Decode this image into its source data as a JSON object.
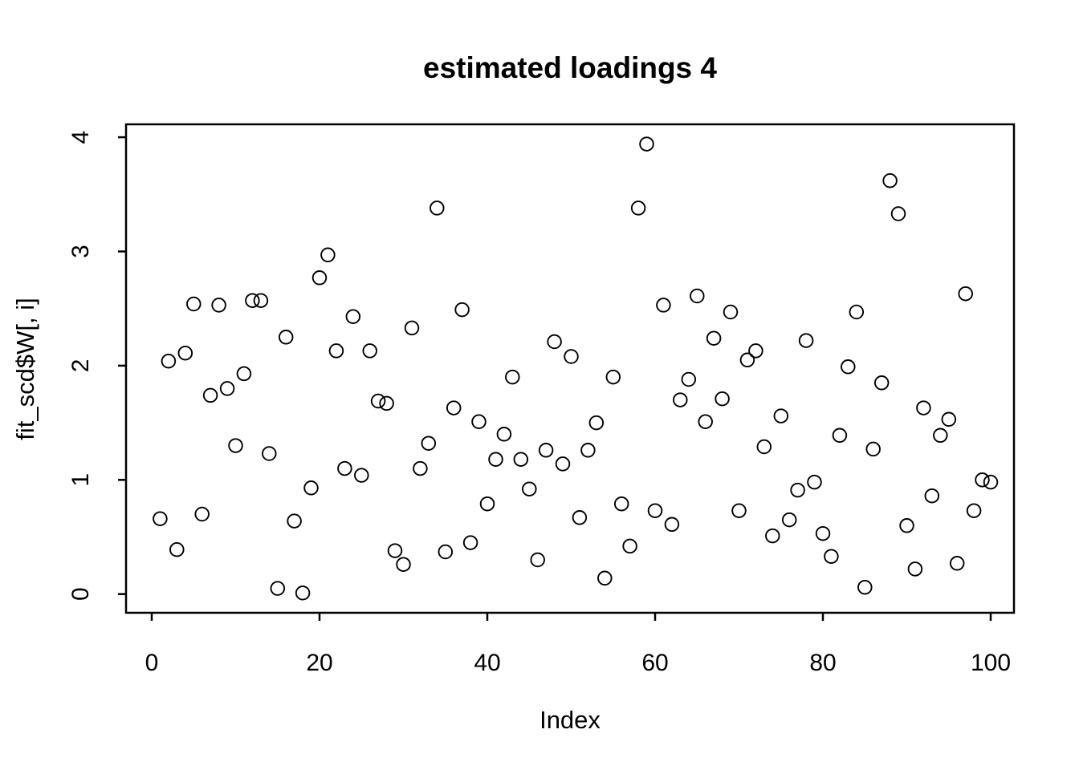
{
  "chart_data": {
    "type": "scatter",
    "title": "estimated loadings 4",
    "xlabel": "Index",
    "ylabel": "fit_scd$W[, i]",
    "x_ticks": [
      0,
      20,
      40,
      60,
      80,
      100
    ],
    "y_ticks": [
      0,
      1,
      2,
      3,
      4
    ],
    "xlim": [
      -3,
      103
    ],
    "ylim": [
      -0.16,
      4.11
    ],
    "grid": false,
    "legend": false,
    "marker": "open-circle",
    "marker_color": "#000000",
    "background_color": "#ffffff",
    "x": [
      1,
      2,
      3,
      4,
      5,
      6,
      7,
      8,
      9,
      10,
      11,
      12,
      13,
      14,
      15,
      16,
      17,
      18,
      19,
      20,
      21,
      22,
      23,
      24,
      25,
      26,
      27,
      28,
      29,
      30,
      31,
      32,
      33,
      34,
      35,
      36,
      37,
      38,
      39,
      40,
      41,
      42,
      43,
      44,
      45,
      46,
      47,
      48,
      49,
      50,
      51,
      52,
      53,
      54,
      55,
      56,
      57,
      58,
      59,
      60,
      61,
      62,
      63,
      64,
      65,
      66,
      67,
      68,
      69,
      70,
      71,
      72,
      73,
      74,
      75,
      76,
      77,
      78,
      79,
      80,
      81,
      82,
      83,
      84,
      85,
      86,
      87,
      88,
      89,
      90,
      91,
      92,
      93,
      94,
      95,
      96,
      97,
      98,
      99,
      100
    ],
    "y": [
      0.66,
      2.04,
      0.39,
      2.11,
      2.54,
      0.7,
      1.74,
      2.53,
      1.8,
      1.3,
      1.93,
      2.57,
      2.57,
      1.23,
      0.05,
      2.25,
      0.64,
      0.01,
      0.93,
      2.77,
      2.97,
      2.13,
      1.1,
      2.43,
      1.04,
      2.13,
      1.69,
      1.67,
      0.38,
      0.26,
      2.33,
      1.1,
      1.32,
      3.38,
      0.37,
      1.63,
      2.49,
      0.45,
      1.51,
      0.79,
      1.18,
      1.4,
      1.9,
      1.18,
      0.92,
      0.3,
      1.26,
      2.21,
      1.14,
      2.08,
      0.67,
      1.26,
      1.5,
      0.14,
      1.9,
      0.79,
      0.42,
      3.38,
      3.94,
      0.73,
      2.53,
      0.61,
      1.7,
      1.88,
      2.61,
      1.51,
      2.24,
      1.71,
      2.47,
      0.73,
      2.05,
      2.13,
      1.29,
      0.51,
      1.56,
      0.65,
      0.91,
      2.22,
      0.98,
      0.53,
      0.33,
      1.39,
      1.99,
      2.47,
      0.06,
      1.27,
      1.85,
      3.62,
      3.33,
      0.6,
      0.22,
      1.63,
      0.86,
      1.39,
      1.53,
      0.27,
      2.63,
      0.73,
      1.0,
      0.98
    ]
  }
}
